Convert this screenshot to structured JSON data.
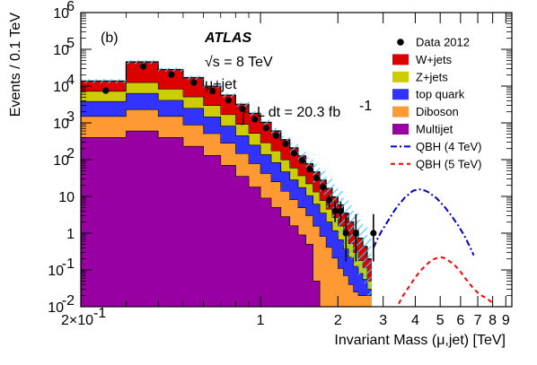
{
  "chart_data": {
    "type": "bar",
    "panel_label": "(b)",
    "experiment": "ATLAS",
    "energy_label": "√s = 8 TeV",
    "channel_label": "μ+jet",
    "lumi_label": "L dt = 20.3 fb",
    "lumi_exp": "-1",
    "xlabel": "Invariant Mass (μ,jet) [TeV]",
    "ylabel": "Events / 0.1 TeV",
    "xscale": "log",
    "yscale": "log",
    "xlim": [
      0.2,
      9.5
    ],
    "ylim": [
      0.01,
      1000000
    ],
    "x_ticks": [
      {
        "value": 0.2,
        "label": "2×10",
        "exp": "-1"
      },
      {
        "value": 1,
        "label": "1"
      },
      {
        "value": 2,
        "label": "2"
      },
      {
        "value": 3,
        "label": "3"
      },
      {
        "value": 4,
        "label": "4"
      },
      {
        "value": 5,
        "label": "5"
      },
      {
        "value": 6,
        "label": "6"
      },
      {
        "value": 7,
        "label": "7"
      },
      {
        "value": 8,
        "label": "8"
      },
      {
        "value": 9,
        "label": "9"
      }
    ],
    "y_ticks": [
      {
        "value": 1000000,
        "label": "10",
        "exp": "6"
      },
      {
        "value": 100000,
        "label": "10",
        "exp": "5"
      },
      {
        "value": 10000,
        "label": "10",
        "exp": "4"
      },
      {
        "value": 1000,
        "label": "10",
        "exp": "3"
      },
      {
        "value": 100,
        "label": "10",
        "exp": "2"
      },
      {
        "value": 10,
        "label": "10"
      },
      {
        "value": 1,
        "label": "1"
      },
      {
        "value": 0.1,
        "label": "10",
        "exp": "-1"
      },
      {
        "value": 0.01,
        "label": "10",
        "exp": "-2"
      }
    ],
    "bin_edges": [
      0.2,
      0.3,
      0.4,
      0.5,
      0.6,
      0.7,
      0.8,
      0.9,
      1.0,
      1.1,
      1.2,
      1.3,
      1.4,
      1.5,
      1.6,
      1.7,
      1.8,
      1.9,
      2.0,
      2.1,
      2.2,
      2.3,
      2.4,
      2.5,
      2.6,
      2.7
    ],
    "stacked_series": [
      {
        "name": "Multijet",
        "color": "#9900a3",
        "values": [
          400,
          600,
          400,
          230,
          130,
          70,
          35,
          18,
          9,
          5,
          2.8,
          1.6,
          0.9,
          0.5,
          0.05,
          0.01,
          0.01,
          0.01,
          0.01,
          0.01,
          0.01,
          0.01,
          0.01,
          0.01,
          0.01
        ]
      },
      {
        "name": "Diboson",
        "color": "#ff9933",
        "values": [
          1100,
          1700,
          1100,
          650,
          380,
          210,
          110,
          60,
          33,
          20,
          11,
          6.5,
          4,
          2.5,
          1.5,
          0.8,
          0.4,
          0.2,
          0.1,
          0.06,
          0.03,
          0.015,
          0.01,
          0.01,
          0.01
        ]
      },
      {
        "name": "top quark",
        "color": "#3333ff",
        "values": [
          2300,
          4000,
          2600,
          1600,
          950,
          540,
          300,
          170,
          95,
          58,
          33,
          20,
          12.5,
          7.5,
          4.6,
          2.7,
          1.6,
          0.95,
          0.55,
          0.3,
          0.18,
          0.1,
          0.06,
          0.035,
          0.01
        ]
      },
      {
        "name": "Z+jets",
        "color": "#cccc00",
        "values": [
          3400,
          6200,
          4200,
          2600,
          1500,
          850,
          470,
          270,
          150,
          90,
          52,
          31,
          19,
          11.5,
          7,
          4.2,
          2.5,
          1.5,
          0.9,
          0.52,
          0.3,
          0.17,
          0.1,
          0.06,
          0.02
        ]
      },
      {
        "name": "W+jets",
        "color": "#dd0000",
        "values": [
          6500,
          33000,
          20000,
          12000,
          7000,
          4000,
          2300,
          1300,
          750,
          430,
          250,
          150,
          90,
          55,
          33,
          20,
          12,
          7,
          4.3,
          2.6,
          1.5,
          0.9,
          0.55,
          0.32,
          0.15
        ]
      }
    ],
    "data_series": {
      "name": "Data 2012",
      "x": [
        0.25,
        0.35,
        0.45,
        0.55,
        0.65,
        0.75,
        0.85,
        0.95,
        1.05,
        1.15,
        1.25,
        1.35,
        1.45,
        1.55,
        1.65,
        1.75,
        1.85,
        1.95,
        2.05,
        2.15,
        2.35,
        2.75
      ],
      "y": [
        7500,
        34000,
        20500,
        12500,
        7300,
        4100,
        2400,
        1250,
        720,
        450,
        270,
        150,
        95,
        55,
        32,
        18,
        8,
        4,
        4,
        1,
        1,
        1
      ],
      "err_low": [
        90,
        180,
        140,
        110,
        85,
        65,
        50,
        36,
        27,
        21,
        16,
        12,
        10,
        7.4,
        5.7,
        4.2,
        2.8,
        2.0,
        2.0,
        0.83,
        0.83,
        0.83
      ],
      "err_high": [
        90,
        180,
        140,
        110,
        85,
        65,
        50,
        36,
        27,
        21,
        16,
        12,
        10,
        7.4,
        5.7,
        4.2,
        2.8,
        3.2,
        3.2,
        2.3,
        2.3,
        2.3
      ]
    },
    "signal_series": [
      {
        "name": "QBH (4 TeV)",
        "color": "#0000cc",
        "dash": "7,3,2,3",
        "x": [
          2.75,
          2.85,
          2.95,
          3.05,
          3.15,
          3.25,
          3.35,
          3.45,
          3.55,
          3.65,
          3.75,
          3.85,
          3.95,
          4.05,
          4.15,
          4.25,
          4.35,
          4.45,
          4.55,
          4.65,
          4.75,
          4.85,
          4.95,
          5.05,
          5.15,
          5.25,
          5.35,
          5.45,
          5.55,
          5.65,
          5.75,
          5.85,
          5.95,
          6.05,
          6.15,
          6.25,
          6.35,
          6.45,
          6.55,
          6.65,
          6.75
        ],
        "y": [
          0.4,
          0.7,
          1.1,
          1.6,
          2.3,
          3.3,
          4.5,
          6.0,
          7.5,
          9.5,
          11.0,
          13.0,
          14.5,
          15.0,
          15.5,
          15.0,
          14.5,
          13.5,
          12.5,
          11.0,
          10.0,
          8.8,
          7.6,
          6.5,
          5.6,
          4.8,
          4.0,
          3.4,
          2.9,
          2.4,
          2.0,
          1.7,
          1.4,
          1.15,
          0.95,
          0.78,
          0.62,
          0.5,
          0.4,
          0.32,
          0.25
        ]
      },
      {
        "name": "QBH (5 TeV)",
        "color": "#ff0000",
        "dash": "5,4",
        "x": [
          3.45,
          3.55,
          3.65,
          3.75,
          3.85,
          3.95,
          4.05,
          4.15,
          4.25,
          4.35,
          4.45,
          4.55,
          4.65,
          4.75,
          4.85,
          4.95,
          5.05,
          5.15,
          5.25,
          5.35,
          5.45,
          5.55,
          5.65,
          5.75,
          5.85,
          5.95,
          6.05,
          6.15,
          6.25,
          6.35,
          6.45,
          6.55,
          6.65,
          6.75,
          6.85,
          6.95,
          7.05,
          7.15,
          7.25,
          7.35,
          7.45,
          7.55,
          7.65,
          7.75,
          7.85,
          7.95
        ],
        "y": [
          0.012,
          0.018,
          0.024,
          0.032,
          0.042,
          0.055,
          0.07,
          0.088,
          0.105,
          0.125,
          0.145,
          0.165,
          0.185,
          0.2,
          0.21,
          0.22,
          0.22,
          0.215,
          0.2,
          0.185,
          0.17,
          0.155,
          0.14,
          0.125,
          0.11,
          0.095,
          0.082,
          0.07,
          0.06,
          0.052,
          0.045,
          0.04,
          0.035,
          0.031,
          0.028,
          0.025,
          0.023,
          0.021,
          0.02,
          0.019,
          0.018,
          0.017,
          0.016,
          0.015,
          0.014,
          0.013
        ]
      }
    ],
    "uncertainty_band": {
      "color": "#33ccff",
      "pattern": "hatched",
      "rel_err_low": [
        0.12,
        0.12,
        0.12,
        0.12,
        0.12,
        0.13,
        0.14,
        0.15,
        0.17,
        0.2,
        0.23,
        0.28,
        0.33,
        0.4,
        0.5,
        0.6,
        0.7,
        0.8,
        0.85,
        0.9,
        0.9,
        0.9,
        0.9,
        0.9,
        0.9
      ],
      "rel_err_high": [
        0.12,
        0.12,
        0.12,
        0.12,
        0.12,
        0.13,
        0.14,
        0.15,
        0.17,
        0.2,
        0.25,
        0.32,
        0.4,
        0.5,
        0.65,
        0.8,
        1.0,
        1.2,
        1.4,
        1.6,
        1.8,
        2.0,
        2.2,
        2.4,
        2.6
      ]
    },
    "legend": {
      "placement": "top-right",
      "entries": [
        {
          "label": "Data 2012",
          "kind": "marker",
          "color": "#000000"
        },
        {
          "label": "W+jets",
          "kind": "box",
          "color": "#dd0000"
        },
        {
          "label": "Z+jets",
          "kind": "box",
          "color": "#cccc00"
        },
        {
          "label": "top quark",
          "kind": "box",
          "color": "#3333ff"
        },
        {
          "label": "Diboson",
          "kind": "box",
          "color": "#ff9933"
        },
        {
          "label": "Multijet",
          "kind": "box",
          "color": "#9900a3"
        },
        {
          "label": "QBH (4 TeV)",
          "kind": "line",
          "color": "#0000cc",
          "dash": "7,3,2,3"
        },
        {
          "label": "QBH (5 TeV)",
          "kind": "line",
          "color": "#ff0000",
          "dash": "5,4"
        }
      ]
    }
  }
}
